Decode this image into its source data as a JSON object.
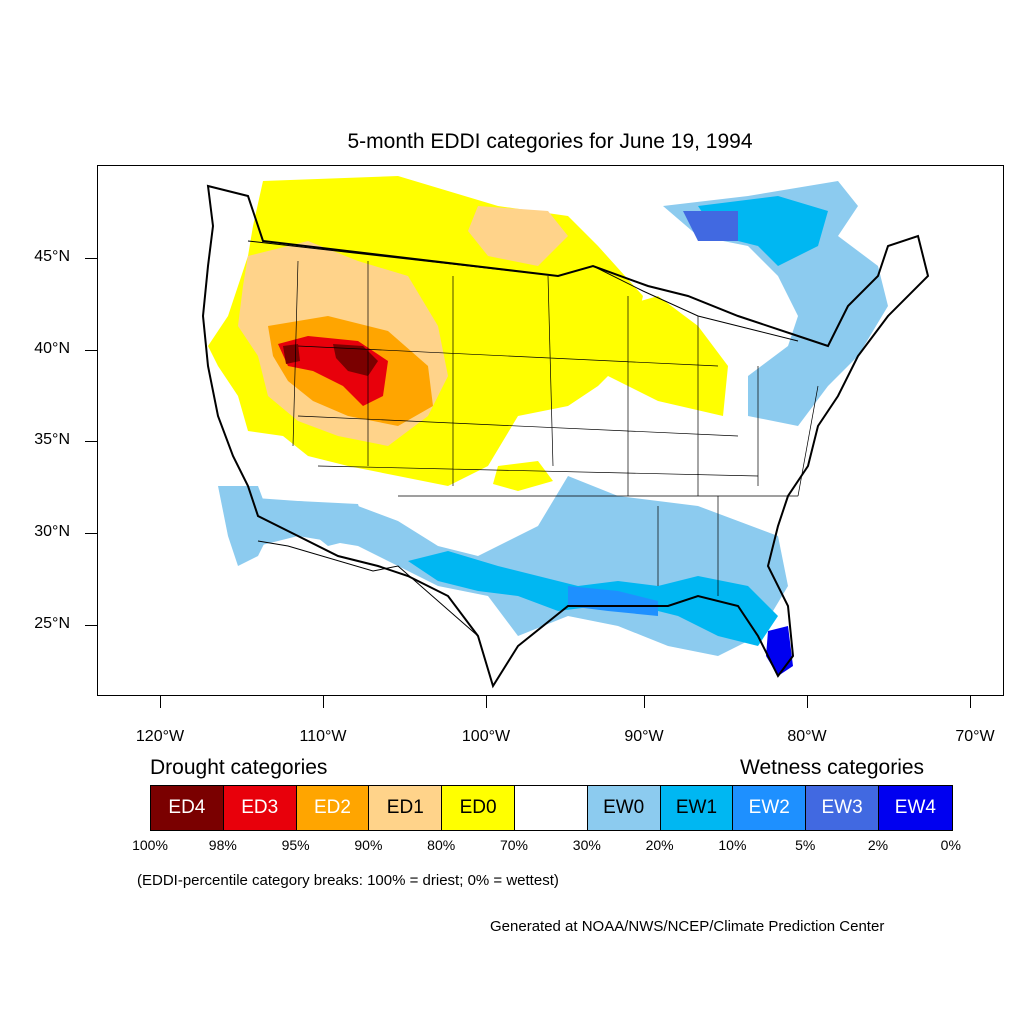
{
  "title": "5-month EDDI categories for June 19, 1994",
  "lat_labels": [
    "45°N",
    "40°N",
    "35°N",
    "30°N",
    "25°N"
  ],
  "lon_labels": [
    "120°W",
    "110°W",
    "100°W",
    "90°W",
    "80°W",
    "70°W"
  ],
  "legend": {
    "drought_heading": "Drought categories",
    "wetness_heading": "Wetness categories",
    "categories": [
      {
        "label": "ED4",
        "color": "#7a0000",
        "text_color": "#ffffff"
      },
      {
        "label": "ED3",
        "color": "#e8000b",
        "text_color": "#ffffff"
      },
      {
        "label": "ED2",
        "color": "#ffa500",
        "text_color": "#ffffff"
      },
      {
        "label": "ED1",
        "color": "#ffd38a",
        "text_color": "#000000"
      },
      {
        "label": "ED0",
        "color": "#ffff00",
        "text_color": "#000000"
      },
      {
        "label": "",
        "color": "#ffffff",
        "text_color": "#000000"
      },
      {
        "label": "EW0",
        "color": "#8ccbef",
        "text_color": "#000000"
      },
      {
        "label": "EW1",
        "color": "#00b7f2",
        "text_color": "#000000"
      },
      {
        "label": "EW2",
        "color": "#1e90ff",
        "text_color": "#ffffff"
      },
      {
        "label": "EW3",
        "color": "#4169e1",
        "text_color": "#ffffff"
      },
      {
        "label": "EW4",
        "color": "#0000f0",
        "text_color": "#ffffff"
      }
    ],
    "percent_breaks": [
      "100%",
      "98%",
      "95%",
      "90%",
      "80%",
      "70%",
      "30%",
      "20%",
      "10%",
      "5%",
      "2%",
      "0%"
    ]
  },
  "note": "(EDDI-percentile category breaks: 100% = driest; 0% = wettest)",
  "credit": "Generated at NOAA/NWS/NCEP/Climate Prediction Center"
}
